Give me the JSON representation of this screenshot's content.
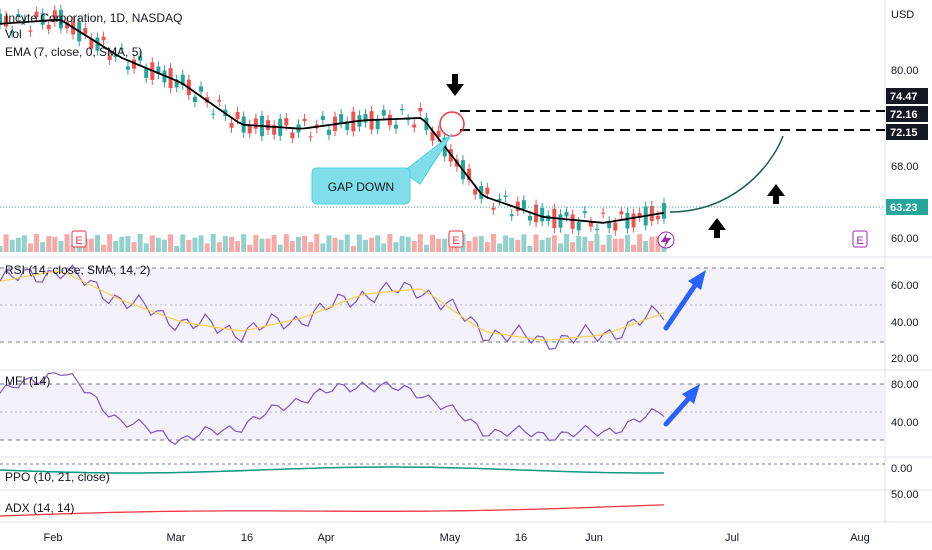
{
  "header": {
    "symbol_line": "Incyte Corporation, 1D, NASDAQ",
    "vol_label": "Vol",
    "ema_label": "EMA (7, close, 0, SMA, 5)",
    "currency": "USD"
  },
  "price_panel": {
    "y_ticks": [
      "80.00",
      "68.00",
      "60.00"
    ],
    "price_tags": [
      {
        "text": "74.47",
        "value": 74.47,
        "bg": "#131722"
      },
      {
        "text": "72.16",
        "value": 72.16,
        "bg": "#131722"
      },
      {
        "text": "72.15",
        "value": 72.15,
        "bg": "#131722"
      },
      {
        "text": "63.23",
        "value": 63.23,
        "bg": "#26a69a"
      }
    ],
    "annotation": "GAP DOWN",
    "earnings_marker": "E"
  },
  "rsi_panel": {
    "label": "RSI (14, close, SMA, 14, 2)",
    "y_ticks": [
      "60.00",
      "40.00",
      "20.00"
    ]
  },
  "mfi_panel": {
    "label": "MFI (14)",
    "y_ticks": [
      "80.00",
      "40.00"
    ]
  },
  "ppo_panel": {
    "label": "PPO (10, 21, close)",
    "y_ticks": [
      "0.00"
    ]
  },
  "adx_panel": {
    "label": "ADX (14, 14)",
    "y_ticks": [
      "50.00"
    ]
  },
  "x_axis": {
    "labels": [
      "Feb",
      "Mar",
      "16",
      "Apr",
      "May",
      "16",
      "Jun",
      "Jul",
      "Aug"
    ]
  },
  "colors": {
    "up": "#26a69a",
    "down": "#ef5350",
    "ema": "#000000",
    "rsi": "#7e57c2",
    "rsi_ma": "#f7d14a",
    "ppo": "#089981",
    "adx": "#f23645",
    "arrow_blue": "#2962ff"
  },
  "chart_data": [
    {
      "type": "line",
      "title": "Incyte Corporation, 1D, NASDAQ",
      "series": [
        {
          "name": "EMA (7, close, 0, SMA, 5)",
          "x": [
            "Jan 22",
            "Feb 1",
            "Feb 12",
            "Mar 1",
            "Mar 15",
            "Apr 1",
            "Apr 15",
            "Apr 30",
            "May 15",
            "Jun 1",
            "Jun 15",
            "Jun 21"
          ],
          "values": [
            85.5,
            86.0,
            81.5,
            78.5,
            73.5,
            73.0,
            74.0,
            74.3,
            65.0,
            62.5,
            61.8,
            63.0
          ]
        }
      ],
      "current_price": 63.23,
      "ylim": [
        58,
        90
      ]
    },
    {
      "type": "line",
      "series": [
        {
          "name": "RSI (14, close, SMA, 14, 2)",
          "x": [
            "Jan 22",
            "Feb 1",
            "Feb 12",
            "Mar 1",
            "Mar 15",
            "Apr 1",
            "Apr 15",
            "Apr 30",
            "May 15",
            "Jun 1",
            "Jun 15",
            "Jun 21"
          ],
          "values": [
            62,
            68,
            52,
            40,
            35,
            42,
            55,
            58,
            35,
            30,
            33,
            45
          ]
        }
      ],
      "ylim": [
        20,
        72
      ]
    },
    {
      "type": "line",
      "series": [
        {
          "name": "MFI (14)",
          "x": [
            "Jan 22",
            "Feb 1",
            "Feb 12",
            "Mar 1",
            "Mar 15",
            "Apr 1",
            "Apr 15",
            "Apr 30",
            "May 15",
            "Jun 1",
            "Jun 15",
            "Jun 21"
          ],
          "values": [
            70,
            95,
            40,
            20,
            35,
            65,
            80,
            70,
            30,
            25,
            28,
            50
          ]
        }
      ],
      "ylim": [
        10,
        100
      ]
    }
  ]
}
